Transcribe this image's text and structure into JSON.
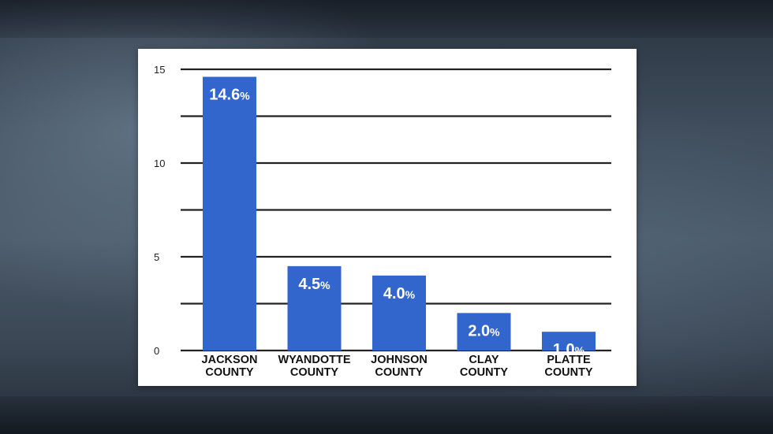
{
  "chart_data": {
    "type": "bar",
    "categories": [
      [
        "JACKSON",
        "COUNTY"
      ],
      [
        "WYANDOTTE",
        "COUNTY"
      ],
      [
        "JOHNSON",
        "COUNTY"
      ],
      [
        "CLAY",
        "COUNTY"
      ],
      [
        "PLATTE",
        "COUNTY"
      ]
    ],
    "values": [
      14.6,
      4.5,
      4.0,
      2.0,
      1.0
    ],
    "data_labels": [
      "14.6",
      "4.5",
      "4.0",
      "2.0",
      "1.0"
    ],
    "data_label_suffix": "%",
    "ylim": [
      0,
      15
    ],
    "y_ticks": [
      0,
      5,
      10,
      15
    ],
    "gridlines": [
      0,
      2.5,
      5,
      7.5,
      10,
      12.5,
      15
    ],
    "grid": true,
    "bar_color": "#3366cc",
    "grid_color": "#222222"
  }
}
